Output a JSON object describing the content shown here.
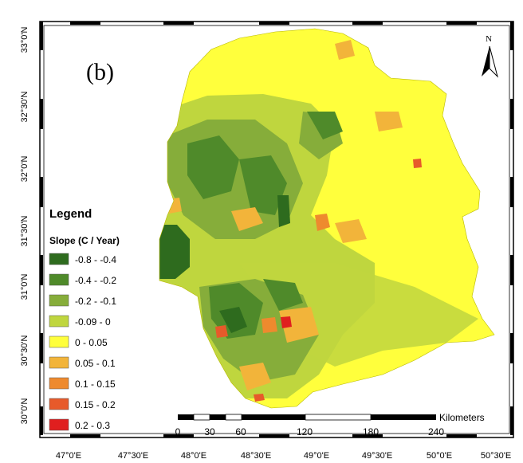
{
  "panel_label": "(b)",
  "north_label": "N",
  "latitude_labels": [
    "33°0'N",
    "32°30'N",
    "32°0'N",
    "31°30'N",
    "31°0'N",
    "30°30'N",
    "30°0'N"
  ],
  "longitude_labels": [
    "47°0'E",
    "47°30'E",
    "48°0'E",
    "48°30'E",
    "49°0'E",
    "49°30'E",
    "50°0'E",
    "50°30'E"
  ],
  "legend": {
    "title": "Legend",
    "subtitle": "Slope (C / Year)",
    "items": [
      {
        "label": "-0.8 - -0.4",
        "color": "#2e6b1e"
      },
      {
        "label": "-0.4 - -0.2",
        "color": "#4f8a2a"
      },
      {
        "label": "-0.2 - -0.1",
        "color": "#86ad3a"
      },
      {
        "label": "-0.09 - 0",
        "color": "#bfd63e"
      },
      {
        "label": "0 - 0.05",
        "color": "#ffff3c"
      },
      {
        "label": "0.05 - 0.1",
        "color": "#f2b43a"
      },
      {
        "label": "0.1 - 0.15",
        "color": "#ee8a2e"
      },
      {
        "label": "0.15 - 0.2",
        "color": "#e75a2a"
      },
      {
        "label": "0.2 - 0.3",
        "color": "#e01f1f"
      }
    ]
  },
  "scalebar": {
    "unit": "Kilometers",
    "ticks": [
      "0",
      "30",
      "60",
      "120",
      "180",
      "240"
    ]
  }
}
